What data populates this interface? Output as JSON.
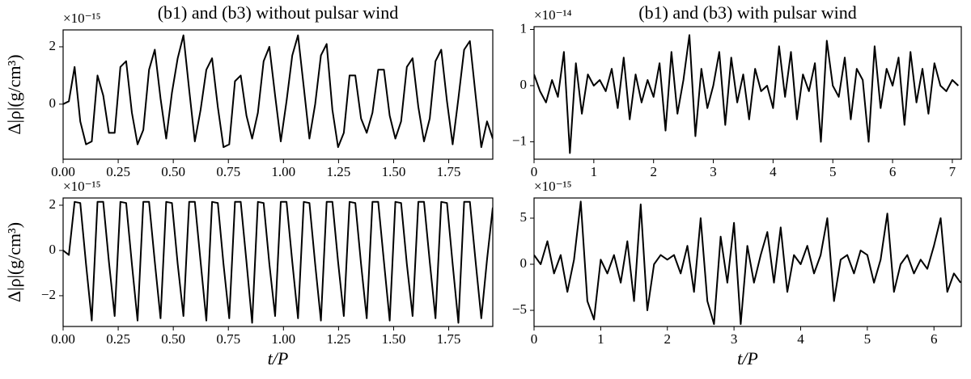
{
  "chart_data": [
    {
      "type": "line",
      "title": "(b1) and (b3) without pulsar wind",
      "ylabel": "Δ|ρ|(g/cm³)",
      "offset_label": "×10⁻¹⁵",
      "color": "#000000",
      "xlim": [
        0,
        1.95
      ],
      "ylim": [
        -1.92,
        2.59
      ],
      "xticks": [
        {
          "value": 0,
          "label": "0.00"
        },
        {
          "value": 0.25,
          "label": "0.25"
        },
        {
          "value": 0.5,
          "label": "0.50"
        },
        {
          "value": 0.75,
          "label": "0.75"
        },
        {
          "value": 1,
          "label": "1.00"
        },
        {
          "value": 1.25,
          "label": "1.25"
        },
        {
          "value": 1.5,
          "label": "1.50"
        },
        {
          "value": 1.75,
          "label": "1.75"
        }
      ],
      "yticks": [
        0,
        2
      ],
      "x": [
        0,
        0.026,
        0.052,
        0.078,
        0.104,
        0.13,
        0.156,
        0.182,
        0.208,
        0.234,
        0.26,
        0.286,
        0.312,
        0.338,
        0.364,
        0.39,
        0.416,
        0.442,
        0.468,
        0.494,
        0.52,
        0.546,
        0.572,
        0.598,
        0.624,
        0.65,
        0.676,
        0.702,
        0.728,
        0.754,
        0.78,
        0.806,
        0.832,
        0.858,
        0.884,
        0.91,
        0.936,
        0.962,
        0.988,
        1.014,
        1.04,
        1.066,
        1.092,
        1.118,
        1.144,
        1.17,
        1.196,
        1.222,
        1.248,
        1.274,
        1.3,
        1.326,
        1.352,
        1.378,
        1.404,
        1.43,
        1.456,
        1.482,
        1.508,
        1.534,
        1.56,
        1.586,
        1.612,
        1.638,
        1.664,
        1.69,
        1.716,
        1.742,
        1.768,
        1.794,
        1.82,
        1.846,
        1.872,
        1.898,
        1.924,
        1.95
      ],
      "values": [
        0,
        0.1,
        1.3,
        -0.6,
        -1.4,
        -1.3,
        1.0,
        0.3,
        -1.0,
        -1.0,
        1.3,
        1.5,
        -0.3,
        -1.4,
        -0.9,
        1.2,
        1.9,
        0.2,
        -1.2,
        0.4,
        1.6,
        2.4,
        0.5,
        -1.3,
        -0.2,
        1.2,
        1.6,
        -0.1,
        -1.5,
        -1.4,
        0.8,
        1.0,
        -0.4,
        -1.2,
        -0.3,
        1.5,
        2.0,
        0.3,
        -1.3,
        0.1,
        1.7,
        2.4,
        0.6,
        -1.2,
        0.0,
        1.7,
        2.1,
        -0.2,
        -1.5,
        -1.0,
        1.0,
        1.0,
        -0.5,
        -1.0,
        -0.3,
        1.2,
        1.2,
        -0.4,
        -1.2,
        -0.6,
        1.3,
        1.6,
        -0.1,
        -1.3,
        -0.5,
        1.5,
        1.9,
        0.1,
        -1.4,
        0.2,
        1.9,
        2.2,
        0.3,
        -1.5,
        -0.6,
        -1.2
      ]
    },
    {
      "type": "line",
      "title": "(b1) and (b3) with pulsar wind",
      "offset_label": "×10⁻¹⁴",
      "color": "#000000",
      "xlim": [
        0,
        7.15
      ],
      "ylim": [
        -1.31,
        1.05
      ],
      "xticks": [
        0,
        1,
        2,
        3,
        4,
        5,
        6,
        7
      ],
      "yticks": [
        {
          "value": -1,
          "label": "−1"
        },
        0,
        1
      ],
      "x": [
        0,
        0.1,
        0.2,
        0.3,
        0.4,
        0.5,
        0.6,
        0.7,
        0.8,
        0.9,
        1,
        1.1,
        1.2,
        1.3,
        1.4,
        1.5,
        1.6,
        1.7,
        1.8,
        1.9,
        2,
        2.1,
        2.2,
        2.3,
        2.4,
        2.5,
        2.6,
        2.7,
        2.8,
        2.9,
        3,
        3.1,
        3.2,
        3.3,
        3.4,
        3.5,
        3.6,
        3.7,
        3.8,
        3.9,
        4,
        4.1,
        4.2,
        4.3,
        4.4,
        4.5,
        4.6,
        4.7,
        4.8,
        4.9,
        5,
        5.1,
        5.2,
        5.3,
        5.4,
        5.5,
        5.6,
        5.7,
        5.8,
        5.9,
        6,
        6.1,
        6.2,
        6.3,
        6.4,
        6.5,
        6.6,
        6.7,
        6.8,
        6.9,
        7,
        7.1
      ],
      "values": [
        0.2,
        -0.1,
        -0.3,
        0.1,
        -0.2,
        0.6,
        -1.2,
        0.4,
        -0.5,
        0.2,
        0.0,
        0.1,
        -0.1,
        0.3,
        -0.4,
        0.5,
        -0.6,
        0.2,
        -0.3,
        0.1,
        -0.2,
        0.4,
        -0.8,
        0.6,
        -0.5,
        0.1,
        0.9,
        -0.9,
        0.3,
        -0.4,
        0.0,
        0.6,
        -0.7,
        0.5,
        -0.3,
        0.2,
        -0.6,
        0.3,
        -0.1,
        0.0,
        -0.4,
        0.7,
        -0.2,
        0.6,
        -0.6,
        0.2,
        -0.1,
        0.4,
        -1.0,
        0.8,
        0.0,
        -0.2,
        0.5,
        -0.6,
        0.3,
        0.1,
        -1.0,
        0.7,
        -0.4,
        0.3,
        0.0,
        0.5,
        -0.7,
        0.6,
        -0.3,
        0.3,
        -0.5,
        0.4,
        0.0,
        -0.1,
        0.1,
        0.0
      ]
    },
    {
      "type": "line",
      "ylabel": "Δ|ρ|(g/cm³)",
      "xlabel": "t/P",
      "offset_label": "×10⁻¹⁵",
      "color": "#000000",
      "xlim": [
        0,
        1.95
      ],
      "ylim": [
        -3.36,
        2.32
      ],
      "xticks": [
        {
          "value": 0,
          "label": "0.00"
        },
        {
          "value": 0.25,
          "label": "0.25"
        },
        {
          "value": 0.5,
          "label": "0.50"
        },
        {
          "value": 0.75,
          "label": "0.75"
        },
        {
          "value": 1,
          "label": "1.00"
        },
        {
          "value": 1.25,
          "label": "1.25"
        },
        {
          "value": 1.5,
          "label": "1.50"
        },
        {
          "value": 1.75,
          "label": "1.75"
        }
      ],
      "yticks": [
        {
          "value": -2,
          "label": "−2"
        },
        0,
        2
      ],
      "x": [
        0,
        0.026,
        0.052,
        0.078,
        0.104,
        0.13,
        0.156,
        0.182,
        0.208,
        0.234,
        0.26,
        0.286,
        0.312,
        0.338,
        0.364,
        0.39,
        0.416,
        0.442,
        0.468,
        0.494,
        0.52,
        0.546,
        0.572,
        0.598,
        0.624,
        0.65,
        0.676,
        0.702,
        0.728,
        0.754,
        0.78,
        0.806,
        0.832,
        0.858,
        0.884,
        0.91,
        0.936,
        0.962,
        0.988,
        1.014,
        1.04,
        1.066,
        1.092,
        1.118,
        1.144,
        1.17,
        1.196,
        1.222,
        1.248,
        1.274,
        1.3,
        1.326,
        1.352,
        1.378,
        1.404,
        1.43,
        1.456,
        1.482,
        1.508,
        1.534,
        1.56,
        1.586,
        1.612,
        1.638,
        1.664,
        1.69,
        1.716,
        1.742,
        1.768,
        1.794,
        1.82,
        1.846,
        1.872,
        1.898,
        1.924,
        1.95
      ],
      "values": [
        0,
        -0.2,
        2.15,
        2.1,
        -0.6,
        -3.1,
        2.15,
        2.15,
        -0.5,
        -2.9,
        2.15,
        2.1,
        -0.6,
        -3.1,
        2.15,
        2.15,
        -0.5,
        -3.0,
        2.15,
        2.1,
        -0.6,
        -2.9,
        2.15,
        2.15,
        -0.5,
        -3.1,
        2.15,
        2.1,
        -0.6,
        -3.0,
        2.15,
        2.15,
        -0.5,
        -3.2,
        2.15,
        2.1,
        -0.6,
        -2.9,
        2.15,
        2.15,
        -0.5,
        -3.0,
        2.15,
        2.1,
        -0.6,
        -3.1,
        2.15,
        2.15,
        -0.5,
        -2.9,
        2.15,
        2.1,
        -0.6,
        -3.0,
        2.15,
        2.15,
        -0.5,
        -3.1,
        2.15,
        2.1,
        -0.6,
        -2.9,
        2.15,
        2.15,
        -0.5,
        -3.0,
        2.15,
        2.1,
        -0.6,
        -3.2,
        2.15,
        2.15,
        -0.5,
        -3.0,
        -0.4,
        1.9
      ]
    },
    {
      "type": "line",
      "xlabel": "t/P",
      "offset_label": "×10⁻¹⁵",
      "color": "#000000",
      "xlim": [
        0,
        6.41
      ],
      "ylim": [
        -6.75,
        7.19
      ],
      "xticks": [
        0,
        1,
        2,
        3,
        4,
        5,
        6
      ],
      "yticks": [
        {
          "value": -5,
          "label": "−5"
        },
        0,
        5
      ],
      "x": [
        0,
        0.1,
        0.2,
        0.3,
        0.4,
        0.5,
        0.6,
        0.7,
        0.8,
        0.9,
        1,
        1.1,
        1.2,
        1.3,
        1.4,
        1.5,
        1.6,
        1.7,
        1.8,
        1.9,
        2,
        2.1,
        2.2,
        2.3,
        2.4,
        2.5,
        2.6,
        2.7,
        2.8,
        2.9,
        3,
        3.1,
        3.2,
        3.3,
        3.4,
        3.5,
        3.6,
        3.7,
        3.8,
        3.9,
        4,
        4.1,
        4.2,
        4.3,
        4.4,
        4.5,
        4.6,
        4.7,
        4.8,
        4.9,
        5,
        5.1,
        5.2,
        5.3,
        5.4,
        5.5,
        5.6,
        5.7,
        5.8,
        5.9,
        6,
        6.1,
        6.2,
        6.3,
        6.4
      ],
      "values": [
        1,
        0,
        2.5,
        -1,
        1,
        -3,
        0.5,
        6.8,
        -4,
        -6,
        0.5,
        -1,
        1,
        -2,
        2.5,
        -4,
        6.5,
        -5,
        0,
        1,
        0.5,
        1,
        -1,
        2,
        -3,
        5,
        -4,
        -6.5,
        3,
        -2,
        4.5,
        -6.5,
        2,
        -2,
        1,
        3.5,
        -2,
        4,
        -3,
        1,
        0,
        2,
        -1,
        1,
        5,
        -4,
        0.5,
        1,
        -1,
        1.5,
        1,
        -2,
        0.5,
        5.5,
        -3,
        0,
        1,
        -1,
        0.5,
        -0.5,
        2,
        5,
        -3,
        -1,
        -2
      ]
    }
  ]
}
